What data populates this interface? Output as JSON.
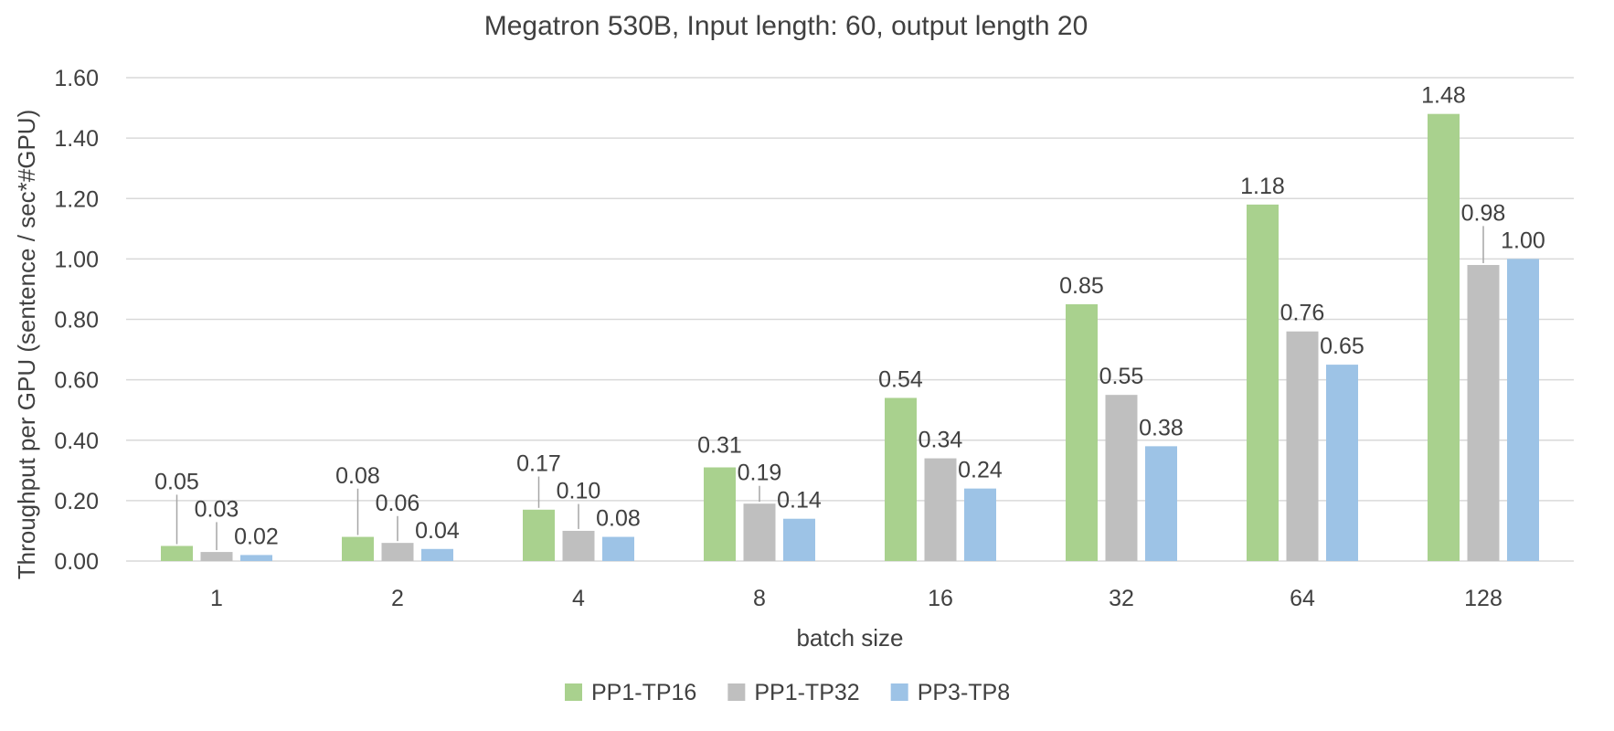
{
  "chart_data": {
    "type": "bar",
    "title": "Megatron 530B, Input length: 60, output length 20",
    "xlabel": "batch size",
    "ylabel": "Throughput per GPU (sentence / sec*#GPU)",
    "categories": [
      "1",
      "2",
      "4",
      "8",
      "16",
      "32",
      "64",
      "128"
    ],
    "ylim": [
      0,
      1.6
    ],
    "yticks": [
      "0.00",
      "0.20",
      "0.40",
      "0.60",
      "0.80",
      "1.00",
      "1.20",
      "1.40",
      "1.60"
    ],
    "grid": true,
    "legend_position": "bottom",
    "series": [
      {
        "name": "PP1-TP16",
        "color": "#a9d18e",
        "values": [
          0.05,
          0.08,
          0.17,
          0.31,
          0.54,
          0.85,
          1.18,
          1.48
        ],
        "labels": [
          "0.05",
          "0.08",
          "0.17",
          "0.31",
          "0.54",
          "0.85",
          "1.18",
          "1.48"
        ]
      },
      {
        "name": "PP1-TP32",
        "color": "#bfbfbf",
        "values": [
          0.03,
          0.06,
          0.1,
          0.19,
          0.34,
          0.55,
          0.76,
          0.98
        ],
        "labels": [
          "0.03",
          "0.06",
          "0.10",
          "0.19",
          "0.34",
          "0.55",
          "0.76",
          "0.98"
        ]
      },
      {
        "name": "PP3-TP8",
        "color": "#9dc3e6",
        "values": [
          0.02,
          0.04,
          0.08,
          0.14,
          0.24,
          0.38,
          0.65,
          1.0
        ],
        "labels": [
          "0.02",
          "0.04",
          "0.08",
          "0.14",
          "0.24",
          "0.38",
          "0.65",
          "1.00"
        ]
      }
    ]
  }
}
